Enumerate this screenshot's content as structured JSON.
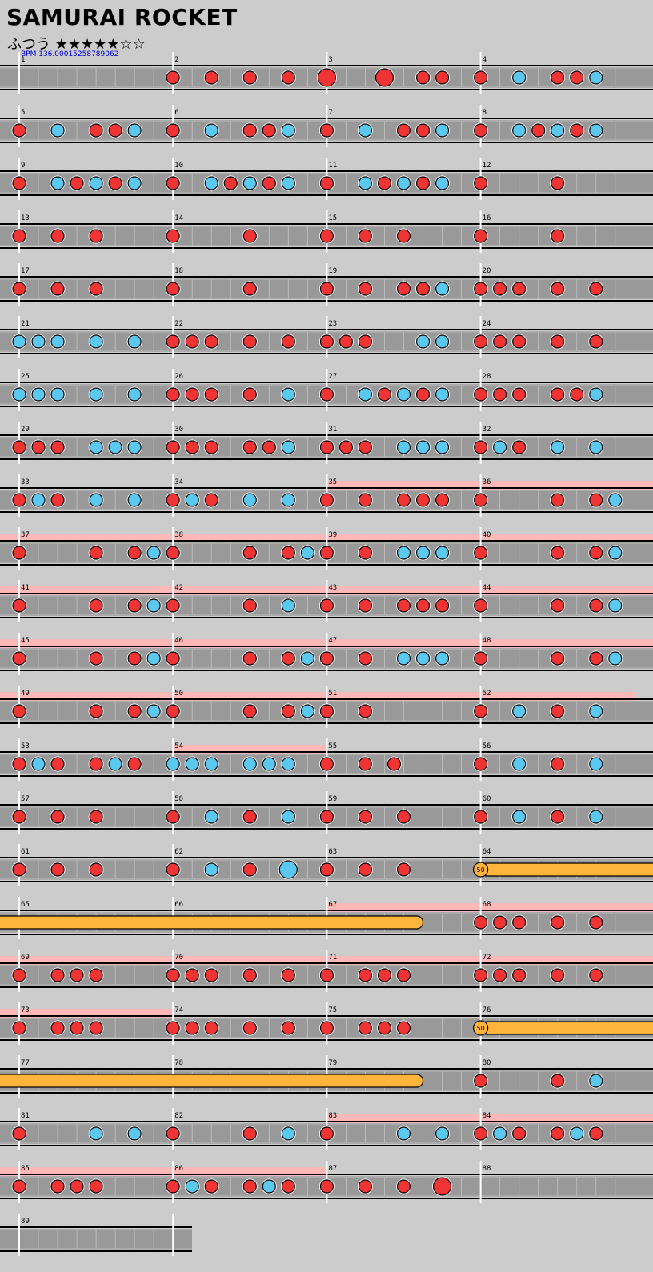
{
  "song": {
    "title": "SAMURAI ROCKET",
    "difficulty": "ふつう",
    "stars_filled": 5,
    "stars_total": 7,
    "bpm_label": "BPM 136.00015258789062"
  },
  "chart_data": {
    "type": "table",
    "measure_count": 89,
    "note_colors": {
      "don": "#f03333",
      "ka": "#5bc8f0",
      "roll": "#ffb43c",
      "gogo": "#ffb8b8",
      "lane": "#999999"
    },
    "roll_label": "50",
    "gogo_ranges": [
      [
        35.0,
        35.999
      ],
      [
        36.0,
        52.999
      ],
      [
        54.0,
        54.999
      ],
      [
        67.0,
        73.999
      ],
      [
        83.0,
        86.999
      ]
    ],
    "rolls": [
      [
        64.0,
        67.625,
        "50"
      ],
      [
        76.0,
        79.625,
        "50"
      ]
    ],
    "notes": [
      [
        2.0,
        "d"
      ],
      [
        2.25,
        "d"
      ],
      [
        2.5,
        "d"
      ],
      [
        2.75,
        "d"
      ],
      [
        3.0,
        "D"
      ],
      [
        3.375,
        "D"
      ],
      [
        3.625,
        "d"
      ],
      [
        3.75,
        "d"
      ],
      [
        4.0,
        "d"
      ],
      [
        4.25,
        "k"
      ],
      [
        4.5,
        "d"
      ],
      [
        4.625,
        "d"
      ],
      [
        4.75,
        "k"
      ],
      [
        5.0,
        "d"
      ],
      [
        5.25,
        "k"
      ],
      [
        5.5,
        "d"
      ],
      [
        5.625,
        "d"
      ],
      [
        5.75,
        "k"
      ],
      [
        6.0,
        "d"
      ],
      [
        6.25,
        "k"
      ],
      [
        6.5,
        "d"
      ],
      [
        6.625,
        "d"
      ],
      [
        6.75,
        "k"
      ],
      [
        7.0,
        "d"
      ],
      [
        7.25,
        "k"
      ],
      [
        7.5,
        "d"
      ],
      [
        7.625,
        "d"
      ],
      [
        7.75,
        "k"
      ],
      [
        8.0,
        "d"
      ],
      [
        8.25,
        "k"
      ],
      [
        8.375,
        "d"
      ],
      [
        8.5,
        "k"
      ],
      [
        8.625,
        "d"
      ],
      [
        8.75,
        "k"
      ],
      [
        9.0,
        "d"
      ],
      [
        9.25,
        "k"
      ],
      [
        9.375,
        "d"
      ],
      [
        9.5,
        "k"
      ],
      [
        9.625,
        "d"
      ],
      [
        9.75,
        "k"
      ],
      [
        10.0,
        "d"
      ],
      [
        10.25,
        "k"
      ],
      [
        10.375,
        "d"
      ],
      [
        10.5,
        "k"
      ],
      [
        10.625,
        "d"
      ],
      [
        10.75,
        "k"
      ],
      [
        11.0,
        "d"
      ],
      [
        11.25,
        "k"
      ],
      [
        11.375,
        "d"
      ],
      [
        11.5,
        "k"
      ],
      [
        11.625,
        "d"
      ],
      [
        11.75,
        "k"
      ],
      [
        12.0,
        "d"
      ],
      [
        12.5,
        "d"
      ],
      [
        13.0,
        "d"
      ],
      [
        13.25,
        "d"
      ],
      [
        13.5,
        "d"
      ],
      [
        14.0,
        "d"
      ],
      [
        14.5,
        "d"
      ],
      [
        15.0,
        "d"
      ],
      [
        15.25,
        "d"
      ],
      [
        15.5,
        "d"
      ],
      [
        16.0,
        "d"
      ],
      [
        16.5,
        "d"
      ],
      [
        17.0,
        "d"
      ],
      [
        17.25,
        "d"
      ],
      [
        17.5,
        "d"
      ],
      [
        18.0,
        "d"
      ],
      [
        18.5,
        "d"
      ],
      [
        19.0,
        "d"
      ],
      [
        19.25,
        "d"
      ],
      [
        19.5,
        "d"
      ],
      [
        19.625,
        "d"
      ],
      [
        19.75,
        "k"
      ],
      [
        20.0,
        "d"
      ],
      [
        20.125,
        "d"
      ],
      [
        20.25,
        "d"
      ],
      [
        20.5,
        "d"
      ],
      [
        20.75,
        "d"
      ],
      [
        21.0,
        "k"
      ],
      [
        21.125,
        "k"
      ],
      [
        21.25,
        "k"
      ],
      [
        21.5,
        "k"
      ],
      [
        21.75,
        "k"
      ],
      [
        22.0,
        "d"
      ],
      [
        22.125,
        "d"
      ],
      [
        22.25,
        "d"
      ],
      [
        22.5,
        "d"
      ],
      [
        22.75,
        "d"
      ],
      [
        23.0,
        "d"
      ],
      [
        23.125,
        "d"
      ],
      [
        23.25,
        "d"
      ],
      [
        23.625,
        "k"
      ],
      [
        23.75,
        "k"
      ],
      [
        24.0,
        "d"
      ],
      [
        24.125,
        "d"
      ],
      [
        24.25,
        "d"
      ],
      [
        24.5,
        "d"
      ],
      [
        24.75,
        "d"
      ],
      [
        25.0,
        "k"
      ],
      [
        25.125,
        "k"
      ],
      [
        25.25,
        "k"
      ],
      [
        25.5,
        "k"
      ],
      [
        25.75,
        "k"
      ],
      [
        26.0,
        "d"
      ],
      [
        26.125,
        "d"
      ],
      [
        26.25,
        "d"
      ],
      [
        26.5,
        "d"
      ],
      [
        26.75,
        "k"
      ],
      [
        27.0,
        "d"
      ],
      [
        27.25,
        "k"
      ],
      [
        27.375,
        "d"
      ],
      [
        27.5,
        "k"
      ],
      [
        27.625,
        "d"
      ],
      [
        27.75,
        "k"
      ],
      [
        28.0,
        "d"
      ],
      [
        28.125,
        "d"
      ],
      [
        28.25,
        "d"
      ],
      [
        28.5,
        "d"
      ],
      [
        28.625,
        "d"
      ],
      [
        28.75,
        "k"
      ],
      [
        29.0,
        "d"
      ],
      [
        29.125,
        "d"
      ],
      [
        29.25,
        "d"
      ],
      [
        29.5,
        "k"
      ],
      [
        29.625,
        "k"
      ],
      [
        29.75,
        "k"
      ],
      [
        30.0,
        "d"
      ],
      [
        30.125,
        "d"
      ],
      [
        30.25,
        "d"
      ],
      [
        30.5,
        "d"
      ],
      [
        30.625,
        "d"
      ],
      [
        30.75,
        "k"
      ],
      [
        31.0,
        "d"
      ],
      [
        31.125,
        "d"
      ],
      [
        31.25,
        "d"
      ],
      [
        31.5,
        "k"
      ],
      [
        31.625,
        "k"
      ],
      [
        31.75,
        "k"
      ],
      [
        32.0,
        "d"
      ],
      [
        32.125,
        "k"
      ],
      [
        32.25,
        "d"
      ],
      [
        32.5,
        "k"
      ],
      [
        32.75,
        "k"
      ],
      [
        33.0,
        "d"
      ],
      [
        33.125,
        "k"
      ],
      [
        33.25,
        "d"
      ],
      [
        33.5,
        "k"
      ],
      [
        33.75,
        "k"
      ],
      [
        34.0,
        "d"
      ],
      [
        34.125,
        "k"
      ],
      [
        34.25,
        "d"
      ],
      [
        34.5,
        "k"
      ],
      [
        34.75,
        "k"
      ],
      [
        35.0,
        "d"
      ],
      [
        35.25,
        "d"
      ],
      [
        35.5,
        "d"
      ],
      [
        35.625,
        "d"
      ],
      [
        35.75,
        "d"
      ],
      [
        36.0,
        "d"
      ],
      [
        36.5,
        "d"
      ],
      [
        36.75,
        "d"
      ],
      [
        36.875,
        "k"
      ],
      [
        37.0,
        "d"
      ],
      [
        37.5,
        "d"
      ],
      [
        37.75,
        "d"
      ],
      [
        37.875,
        "k"
      ],
      [
        38.0,
        "d"
      ],
      [
        38.5,
        "d"
      ],
      [
        38.75,
        "d"
      ],
      [
        38.875,
        "k"
      ],
      [
        39.0,
        "d"
      ],
      [
        39.25,
        "d"
      ],
      [
        39.5,
        "k"
      ],
      [
        39.625,
        "k"
      ],
      [
        39.75,
        "k"
      ],
      [
        40.0,
        "d"
      ],
      [
        40.5,
        "d"
      ],
      [
        40.75,
        "d"
      ],
      [
        40.875,
        "k"
      ],
      [
        41.0,
        "d"
      ],
      [
        41.5,
        "d"
      ],
      [
        41.75,
        "d"
      ],
      [
        41.875,
        "k"
      ],
      [
        42.0,
        "d"
      ],
      [
        42.5,
        "d"
      ],
      [
        42.75,
        "k"
      ],
      [
        43.0,
        "d"
      ],
      [
        43.25,
        "d"
      ],
      [
        43.5,
        "d"
      ],
      [
        43.625,
        "d"
      ],
      [
        43.75,
        "d"
      ],
      [
        44.0,
        "d"
      ],
      [
        44.5,
        "d"
      ],
      [
        44.75,
        "d"
      ],
      [
        44.875,
        "k"
      ],
      [
        45.0,
        "d"
      ],
      [
        45.5,
        "d"
      ],
      [
        45.75,
        "d"
      ],
      [
        45.875,
        "k"
      ],
      [
        46.0,
        "d"
      ],
      [
        46.5,
        "d"
      ],
      [
        46.75,
        "d"
      ],
      [
        46.875,
        "k"
      ],
      [
        47.0,
        "d"
      ],
      [
        47.25,
        "d"
      ],
      [
        47.5,
        "k"
      ],
      [
        47.625,
        "k"
      ],
      [
        47.75,
        "k"
      ],
      [
        48.0,
        "d"
      ],
      [
        48.5,
        "d"
      ],
      [
        48.75,
        "d"
      ],
      [
        48.875,
        "k"
      ],
      [
        49.0,
        "d"
      ],
      [
        49.5,
        "d"
      ],
      [
        49.75,
        "d"
      ],
      [
        49.875,
        "k"
      ],
      [
        50.0,
        "d"
      ],
      [
        50.5,
        "d"
      ],
      [
        50.75,
        "d"
      ],
      [
        50.875,
        "k"
      ],
      [
        51.0,
        "d"
      ],
      [
        51.25,
        "d"
      ],
      [
        52.0,
        "d"
      ],
      [
        52.25,
        "k"
      ],
      [
        52.5,
        "d"
      ],
      [
        52.75,
        "k"
      ],
      [
        53.0,
        "d"
      ],
      [
        53.125,
        "k"
      ],
      [
        53.25,
        "d"
      ],
      [
        53.5,
        "d"
      ],
      [
        53.625,
        "k"
      ],
      [
        53.75,
        "d"
      ],
      [
        54.0,
        "k"
      ],
      [
        54.125,
        "k"
      ],
      [
        54.25,
        "k"
      ],
      [
        54.5,
        "k"
      ],
      [
        54.625,
        "k"
      ],
      [
        54.75,
        "k"
      ],
      [
        55.0,
        "d"
      ],
      [
        55.25,
        "d"
      ],
      [
        55.4375,
        "d"
      ],
      [
        56.0,
        "d"
      ],
      [
        56.25,
        "k"
      ],
      [
        56.5,
        "d"
      ],
      [
        56.75,
        "k"
      ],
      [
        57.0,
        "d"
      ],
      [
        57.25,
        "d"
      ],
      [
        57.5,
        "d"
      ],
      [
        58.0,
        "d"
      ],
      [
        58.25,
        "k"
      ],
      [
        58.5,
        "d"
      ],
      [
        58.75,
        "k"
      ],
      [
        59.0,
        "d"
      ],
      [
        59.25,
        "d"
      ],
      [
        59.5,
        "d"
      ],
      [
        60.0,
        "d"
      ],
      [
        60.25,
        "k"
      ],
      [
        60.5,
        "d"
      ],
      [
        60.75,
        "k"
      ],
      [
        61.0,
        "d"
      ],
      [
        61.25,
        "d"
      ],
      [
        61.5,
        "d"
      ],
      [
        62.0,
        "d"
      ],
      [
        62.25,
        "k"
      ],
      [
        62.5,
        "d"
      ],
      [
        62.75,
        "K"
      ],
      [
        63.0,
        "d"
      ],
      [
        63.25,
        "d"
      ],
      [
        63.5,
        "d"
      ],
      [
        68.0,
        "d"
      ],
      [
        68.125,
        "d"
      ],
      [
        68.25,
        "d"
      ],
      [
        68.5,
        "d"
      ],
      [
        68.75,
        "d"
      ],
      [
        69.0,
        "d"
      ],
      [
        69.25,
        "d"
      ],
      [
        69.375,
        "d"
      ],
      [
        69.5,
        "d"
      ],
      [
        70.0,
        "d"
      ],
      [
        70.125,
        "d"
      ],
      [
        70.25,
        "d"
      ],
      [
        70.5,
        "d"
      ],
      [
        70.75,
        "d"
      ],
      [
        71.0,
        "d"
      ],
      [
        71.25,
        "d"
      ],
      [
        71.375,
        "d"
      ],
      [
        71.5,
        "d"
      ],
      [
        72.0,
        "d"
      ],
      [
        72.125,
        "d"
      ],
      [
        72.25,
        "d"
      ],
      [
        72.5,
        "d"
      ],
      [
        72.75,
        "d"
      ],
      [
        73.0,
        "d"
      ],
      [
        73.25,
        "d"
      ],
      [
        73.375,
        "d"
      ],
      [
        73.5,
        "d"
      ],
      [
        74.0,
        "d"
      ],
      [
        74.125,
        "d"
      ],
      [
        74.25,
        "d"
      ],
      [
        74.5,
        "d"
      ],
      [
        74.75,
        "d"
      ],
      [
        75.0,
        "d"
      ],
      [
        75.25,
        "d"
      ],
      [
        75.375,
        "d"
      ],
      [
        75.5,
        "d"
      ],
      [
        80.0,
        "d"
      ],
      [
        80.5,
        "d"
      ],
      [
        80.75,
        "k"
      ],
      [
        81.0,
        "d"
      ],
      [
        81.5,
        "k"
      ],
      [
        81.75,
        "k"
      ],
      [
        82.0,
        "d"
      ],
      [
        82.5,
        "d"
      ],
      [
        82.75,
        "k"
      ],
      [
        83.0,
        "d"
      ],
      [
        83.5,
        "k"
      ],
      [
        83.75,
        "k"
      ],
      [
        84.0,
        "d"
      ],
      [
        84.125,
        "k"
      ],
      [
        84.25,
        "d"
      ],
      [
        84.5,
        "d"
      ],
      [
        84.625,
        "k"
      ],
      [
        84.75,
        "d"
      ],
      [
        85.0,
        "d"
      ],
      [
        85.25,
        "d"
      ],
      [
        85.375,
        "d"
      ],
      [
        85.5,
        "d"
      ],
      [
        86.0,
        "d"
      ],
      [
        86.125,
        "k"
      ],
      [
        86.25,
        "d"
      ],
      [
        86.5,
        "d"
      ],
      [
        86.625,
        "k"
      ],
      [
        86.75,
        "d"
      ],
      [
        87.0,
        "d"
      ],
      [
        87.25,
        "d"
      ],
      [
        87.5,
        "d"
      ],
      [
        87.75,
        "D"
      ]
    ]
  }
}
